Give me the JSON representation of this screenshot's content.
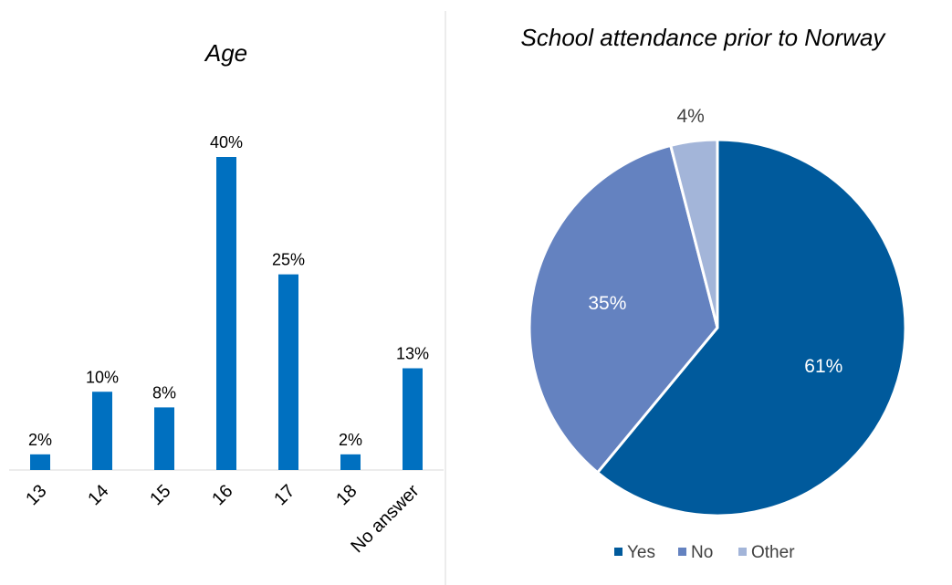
{
  "chart_data": [
    {
      "type": "bar",
      "title": "Age",
      "xlabel": "",
      "ylabel": "",
      "categories": [
        "13",
        "14",
        "15",
        "16",
        "17",
        "18",
        "No answer"
      ],
      "values": [
        2,
        10,
        8,
        40,
        25,
        2,
        13
      ],
      "value_labels": [
        "2%",
        "10%",
        "8%",
        "40%",
        "25%",
        "2%",
        "13%"
      ],
      "unit": "%",
      "ylim": [
        0,
        45
      ],
      "grid": false,
      "color": "#0070C0"
    },
    {
      "type": "pie",
      "title": "School attendance prior to Norway",
      "labels": [
        "Yes",
        "No",
        "Other"
      ],
      "values": [
        61,
        35,
        4
      ],
      "value_labels": [
        "61%",
        "35%",
        "4%"
      ],
      "colors": [
        "#005A9C",
        "#6482C0",
        "#A3B5D9"
      ],
      "legend": "bottom"
    }
  ]
}
